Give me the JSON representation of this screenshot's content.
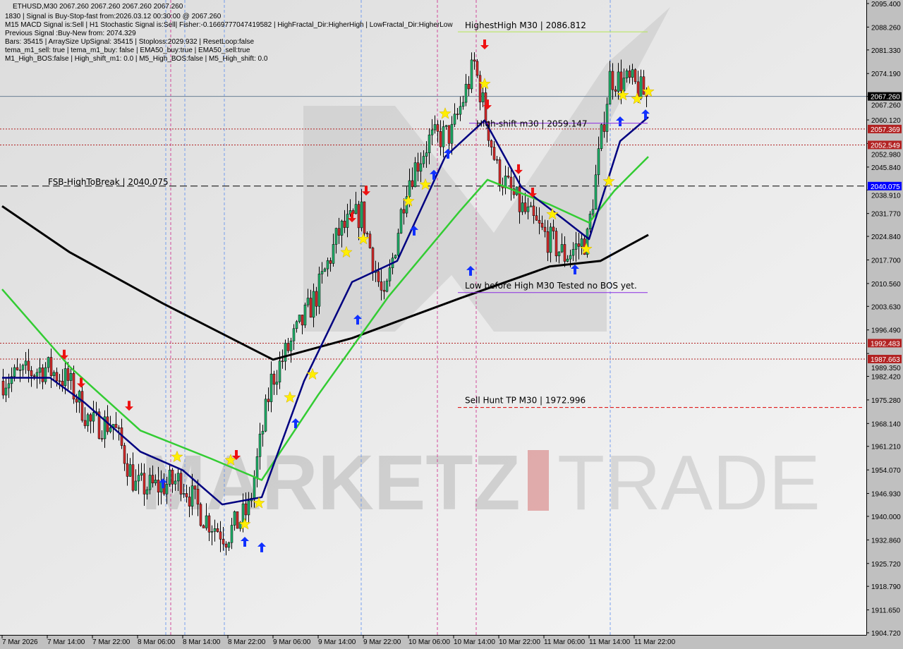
{
  "header": {
    "title": "ETHUSD,M30  2067.260 2067.260 2067.260 2067.260",
    "lines": [
      "1830 | Signal is Buy-Stop-fast from:2026.03.12 00:30:00 @ 2067.260",
      "M15 MACD Signal is:Sell | H1 Stochastic Signal is:Sell| Fisher:-0.1669777047419582 | HighFractal_Dir:HigherHigh | LowFractal_Dir:HigherLow",
      "Previous Signal :Buy-New from: 2074.329",
      "Bars: 35415 | ArraySize UpSignal: 35415 | Stoploss:2029.932 | ResetLoop:false",
      "tema_m1_sell: true | tema_m1_buy: false | EMA50_buy:true | EMA50_sell:true",
      "M1_High_BOS:false | High_shift_m1: 0.0 | M5_High_BOS:false | M5_High_shift: 0.0"
    ]
  },
  "watermark": "MARKETZ TRADE",
  "chart_data": {
    "type": "candlestick",
    "symbol": "ETHUSD",
    "timeframe": "M30",
    "ylim": [
      1904.72,
      2095.4
    ],
    "y_ticks": [
      "2095.400",
      "2088.260",
      "2081.330",
      "2074.190",
      "2067.260",
      "2060.120",
      "2052.980",
      "2045.840",
      "2038.910",
      "2031.770",
      "2024.840",
      "2017.700",
      "2010.560",
      "2003.630",
      "1996.490",
      "1989.350",
      "1982.420",
      "1975.280",
      "1968.140",
      "1961.210",
      "1954.070",
      "1946.930",
      "1940.000",
      "1932.860",
      "1925.720",
      "1918.790",
      "1911.650",
      "1904.720"
    ],
    "x_ticks": [
      {
        "label": "7 Mar 2026",
        "time": "2026-03-07 06:00"
      },
      {
        "label": "7 Mar 14:00",
        "time": "2026-03-07 14:00"
      },
      {
        "label": "7 Mar 22:00",
        "time": "2026-03-07 22:00"
      },
      {
        "label": "8 Mar 06:00",
        "time": "2026-03-08 06:00"
      },
      {
        "label": "8 Mar 14:00",
        "time": "2026-03-08 14:00"
      },
      {
        "label": "8 Mar 22:00",
        "time": "2026-03-08 22:00"
      },
      {
        "label": "9 Mar 06:00",
        "time": "2026-03-09 06:00"
      },
      {
        "label": "9 Mar 14:00",
        "time": "2026-03-09 14:00"
      },
      {
        "label": "9 Mar 22:00",
        "time": "2026-03-09 22:00"
      },
      {
        "label": "10 Mar 06:00",
        "time": "2026-03-10 06:00"
      },
      {
        "label": "10 Mar 14:00",
        "time": "2026-03-10 14:00"
      },
      {
        "label": "10 Mar 22:00",
        "time": "2026-03-10 22:00"
      },
      {
        "label": "11 Mar 06:00",
        "time": "2026-03-11 06:00"
      },
      {
        "label": "11 Mar 14:00",
        "time": "2026-03-11 14:00"
      },
      {
        "label": "11 Mar 22:00",
        "time": "2026-03-11 22:00"
      }
    ],
    "price_path": [
      [
        "2026-03-07 06:00",
        1981
      ],
      [
        "2026-03-07 10:00",
        1983
      ],
      [
        "2026-03-07 14:00",
        1985
      ],
      [
        "2026-03-07 18:00",
        1981
      ],
      [
        "2026-03-07 22:00",
        1968
      ],
      [
        "2026-03-08 02:00",
        1968
      ],
      [
        "2026-03-08 06:00",
        1949
      ],
      [
        "2026-03-08 10:00",
        1949
      ],
      [
        "2026-03-08 14:00",
        1951
      ],
      [
        "2026-03-08 18:00",
        1940
      ],
      [
        "2026-03-08 22:00",
        1934
      ],
      [
        "2026-03-09 02:00",
        1942
      ],
      [
        "2026-03-09 06:00",
        1981
      ],
      [
        "2026-03-09 10:00",
        1994
      ],
      [
        "2026-03-09 14:00",
        2007
      ],
      [
        "2026-03-09 18:00",
        2026
      ],
      [
        "2026-03-09 22:00",
        2032
      ],
      [
        "2026-03-10 02:00",
        2004
      ],
      [
        "2026-03-10 06:00",
        2041
      ],
      [
        "2026-03-10 10:00",
        2054
      ],
      [
        "2026-03-10 14:00",
        2056
      ],
      [
        "2026-03-10 18:00",
        2077
      ],
      [
        "2026-03-10 22:00",
        2045
      ],
      [
        "2026-03-11 02:00",
        2034
      ],
      [
        "2026-03-11 06:00",
        2026
      ],
      [
        "2026-03-11 10:00",
        2019
      ],
      [
        "2026-03-11 14:00",
        2024
      ],
      [
        "2026-03-11 18:00",
        2073
      ],
      [
        "2026-03-11 22:00",
        2071
      ],
      [
        "2026-03-12 00:30",
        2067.26
      ]
    ],
    "lines": [
      {
        "color": "#000000",
        "points": [
          [
            "2026-03-07 06:00",
            2034
          ],
          [
            "2026-03-07 18:00",
            2020
          ],
          [
            "2026-03-08 10:30",
            2004.5
          ],
          [
            "2026-03-09 06:00",
            1987.5
          ],
          [
            "2026-03-09 20:00",
            1994
          ],
          [
            "2026-03-10 15:00",
            2006
          ],
          [
            "2026-03-11 07:00",
            2015.7
          ],
          [
            "2026-03-11 16:00",
            2017.4
          ],
          [
            "2026-03-12 00:30",
            2025.3
          ]
        ]
      },
      {
        "color": "#33cc33",
        "points": [
          [
            "2026-03-07 06:00",
            2008.8
          ],
          [
            "2026-03-07 18:00",
            1985.3
          ],
          [
            "2026-03-08 06:30",
            1966
          ],
          [
            "2026-03-08 19:00",
            1957.5
          ],
          [
            "2026-03-09 04:00",
            1951
          ],
          [
            "2026-03-09 14:00",
            1976.8
          ],
          [
            "2026-03-10 02:30",
            2006.7
          ],
          [
            "2026-03-10 15:00",
            2032.3
          ],
          [
            "2026-03-10 20:00",
            2042
          ],
          [
            "2026-03-11 07:00",
            2034.5
          ],
          [
            "2026-03-11 14:00",
            2029
          ],
          [
            "2026-03-11 18:30",
            2038.7
          ],
          [
            "2026-03-12 00:30",
            2049
          ]
        ]
      },
      {
        "color": "#000080",
        "points": [
          [
            "2026-03-07 06:00",
            1982
          ],
          [
            "2026-03-07 14:30",
            1982
          ],
          [
            "2026-03-07 20:30",
            1974.6
          ],
          [
            "2026-03-08 06:30",
            1959.6
          ],
          [
            "2026-03-08 14:00",
            1954
          ],
          [
            "2026-03-08 21:00",
            1943.6
          ],
          [
            "2026-03-09 04:00",
            1945.8
          ],
          [
            "2026-03-09 11:30",
            1981
          ],
          [
            "2026-03-09 20:00",
            2011
          ],
          [
            "2026-03-10 04:00",
            2017.4
          ],
          [
            "2026-03-10 12:30",
            2049
          ],
          [
            "2026-03-10 19:30",
            2060
          ],
          [
            "2026-03-11 02:00",
            2039.8
          ],
          [
            "2026-03-11 09:30",
            2030
          ],
          [
            "2026-03-11 14:00",
            2024
          ],
          [
            "2026-03-11 19:30",
            2053.7
          ],
          [
            "2026-03-12 00:30",
            2061
          ]
        ]
      }
    ],
    "levels": [
      {
        "price": 2067.26,
        "label": "2067.260",
        "style": "solid",
        "color": "#6a7f95",
        "tag_bg": "#000000"
      },
      {
        "price": 2057.369,
        "label": "2057.369",
        "style": "dotted",
        "color": "#b22222",
        "tag_bg": "#b22222"
      },
      {
        "price": 2052.549,
        "label": "2052.549",
        "style": "dotted",
        "color": "#b22222",
        "tag_bg": "#b22222"
      },
      {
        "price": 2040.075,
        "label": "2040.075",
        "style": "dashed",
        "color": "#000000",
        "tag_bg": "#0000ff"
      },
      {
        "price": 1992.483,
        "label": "1992.483",
        "style": "dotted",
        "color": "#b22222",
        "tag_bg": "#b22222"
      },
      {
        "price": 1987.663,
        "label": "1987.663",
        "style": "dotted",
        "color": "#b22222",
        "tag_bg": "#b22222"
      }
    ],
    "annotations": [
      {
        "text": "FSB-HighToBreak | 2040.075",
        "price": 2040.075,
        "time": "2026-03-07 22:00"
      },
      {
        "text": "HighestHigh   M30 | 2086.812",
        "price": 2086.812,
        "time": "2026-03-10 16:00",
        "line_color": "#b5e655"
      },
      {
        "text": "High-shift m30 | 2059.147",
        "price": 2059.147,
        "time": "2026-03-10 18:00",
        "line_color": "#8a2be2"
      },
      {
        "text": "Low before High  M30 Tested no BOS yet.",
        "price": 2007.8,
        "time": "2026-03-10 16:00",
        "line_color": "#8a2be2"
      },
      {
        "text": "Sell Hunt TP M30 | 1972.996",
        "price": 1972.996,
        "time": "2026-03-10 16:00",
        "line_color": "#dd0000"
      }
    ],
    "markers": {
      "star": [
        [
          "2026-03-09 09:00",
          1976
        ],
        [
          "2026-03-09 13:00",
          1983
        ],
        [
          "2026-03-09 19:00",
          2020
        ],
        [
          "2026-03-09 22:00",
          2024
        ],
        [
          "2026-03-10 06:00",
          2035.5
        ],
        [
          "2026-03-10 09:00",
          2040.5
        ],
        [
          "2026-03-10 12:30",
          2062
        ],
        [
          "2026-03-10 19:30",
          2071
        ],
        [
          "2026-03-11 07:30",
          2031.5
        ],
        [
          "2026-03-11 13:30",
          2021
        ],
        [
          "2026-03-11 17:30",
          2041.5
        ],
        [
          "2026-03-11 20:00",
          2067.6
        ],
        [
          "2026-03-11 22:30",
          2066.5
        ],
        [
          "2026-03-12 00:30",
          2068.7
        ],
        [
          "2026-03-09 03:30",
          1944
        ],
        [
          "2026-03-09 01:00",
          1937.6
        ],
        [
          "2026-03-08 13:00",
          1958
        ],
        [
          "2026-03-08 22:30",
          1957
        ]
      ],
      "buy_arrow": [
        [
          "2026-03-09 10:00",
          1968.2
        ],
        [
          "2026-03-09 21:00",
          1999.6
        ],
        [
          "2026-03-10 07:00",
          2026.6
        ],
        [
          "2026-03-10 10:30",
          2043.5
        ],
        [
          "2026-03-10 17:00",
          2014.4
        ],
        [
          "2026-03-11 11:30",
          2014.8
        ],
        [
          "2026-03-11 19:30",
          2059.7
        ],
        [
          "2026-03-12 00:00",
          2061.8
        ],
        [
          "2026-03-09 01:00",
          1932.3
        ],
        [
          "2026-03-09 04:00",
          1930.6
        ],
        [
          "2026-03-08 10:30",
          1950
        ],
        [
          "2026-03-10 13:00",
          2049.9
        ]
      ],
      "sell_arrow": [
        [
          "2026-03-07 17:00",
          1989
        ],
        [
          "2026-03-07 20:00",
          1980.5
        ],
        [
          "2026-03-08 04:30",
          1973.5
        ],
        [
          "2026-03-08 23:30",
          1958.6
        ],
        [
          "2026-03-09 20:00",
          2030.6
        ],
        [
          "2026-03-09 22:30",
          2038.7
        ],
        [
          "2026-03-10 19:30",
          2083
        ],
        [
          "2026-03-10 20:00",
          2064.8
        ],
        [
          "2026-03-11 01:30",
          2045.2
        ],
        [
          "2026-03-11 04:00",
          2038.1
        ]
      ]
    },
    "colors": {
      "bull": "#1fb26a",
      "bear": "#d62a2a",
      "background": "#e6e6e6",
      "axis": "#c0c0c0"
    }
  }
}
